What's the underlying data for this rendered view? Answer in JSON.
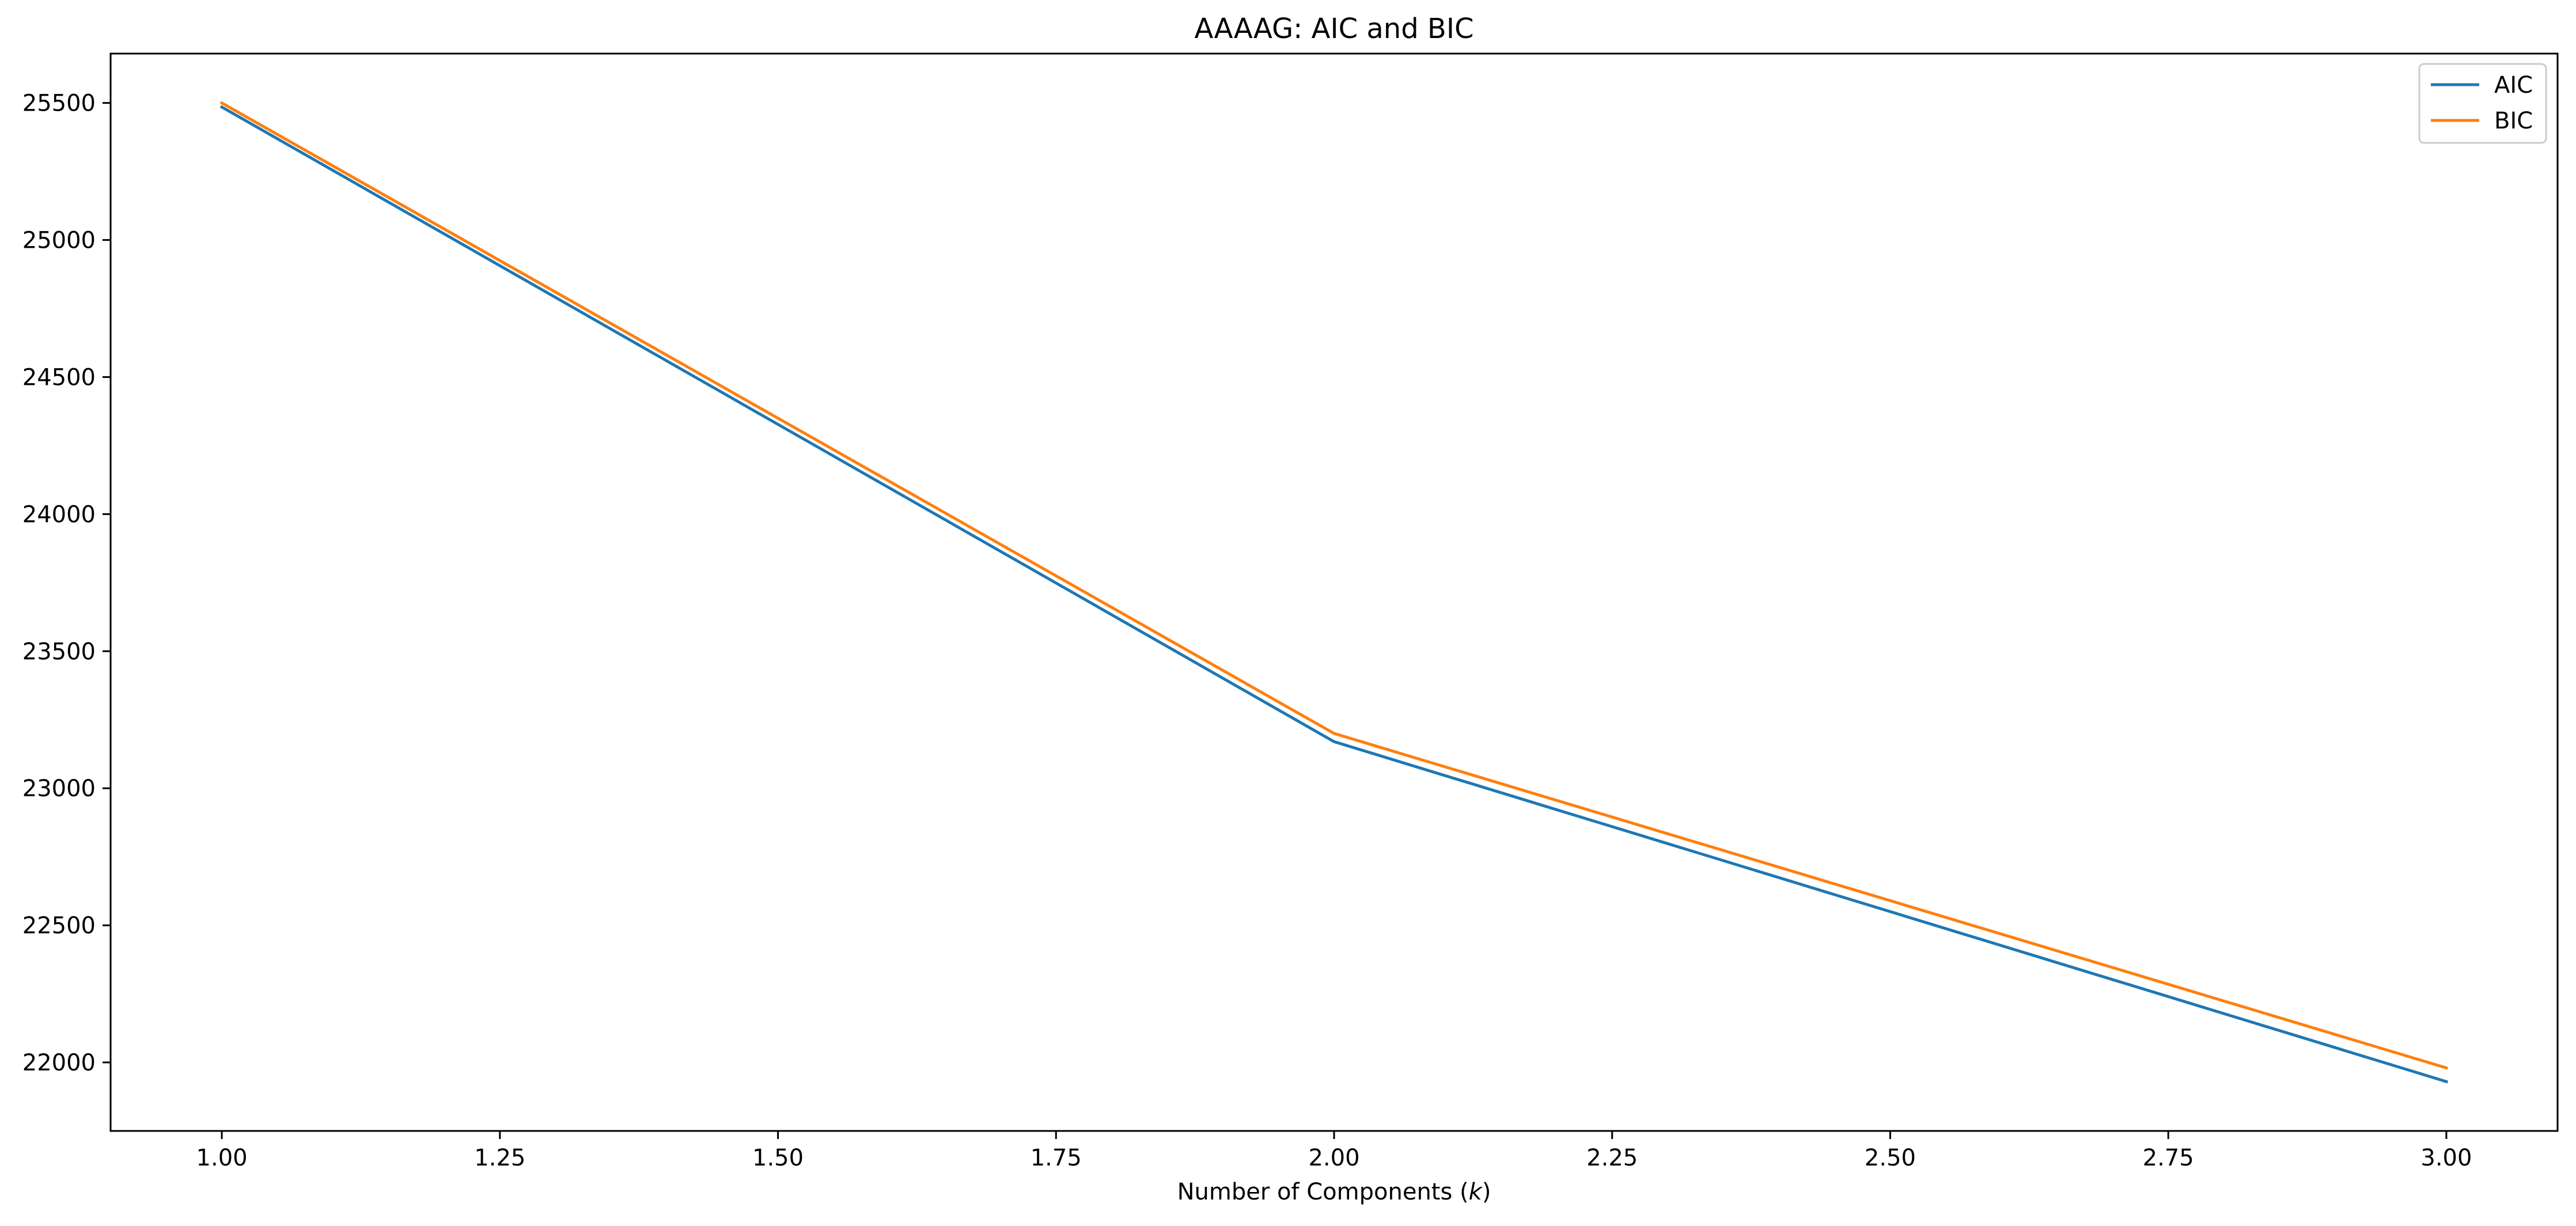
{
  "chart_data": {
    "type": "line",
    "title": "AAAAG: AIC and BIC",
    "xlabel_text": "Number of Components (",
    "xlabel_var": "k",
    "xlabel_close": ")",
    "ylabel": "",
    "x": [
      1.0,
      2.0,
      3.0
    ],
    "series": [
      {
        "name": "AIC",
        "color": "#1f77b4",
        "values": [
          25485,
          23170,
          21930
        ]
      },
      {
        "name": "BIC",
        "color": "#ff7f0e",
        "values": [
          25500,
          23200,
          21980
        ]
      }
    ],
    "xlim": [
      0.9,
      3.1
    ],
    "ylim": [
      21750,
      25680
    ],
    "xticks": [
      "1.00",
      "1.25",
      "1.50",
      "1.75",
      "2.00",
      "2.25",
      "2.50",
      "2.75",
      "3.00"
    ],
    "yticks": [
      "22000",
      "22500",
      "23000",
      "23500",
      "24000",
      "24500",
      "25000",
      "25500"
    ],
    "grid": false,
    "legend_position": "upper right"
  }
}
